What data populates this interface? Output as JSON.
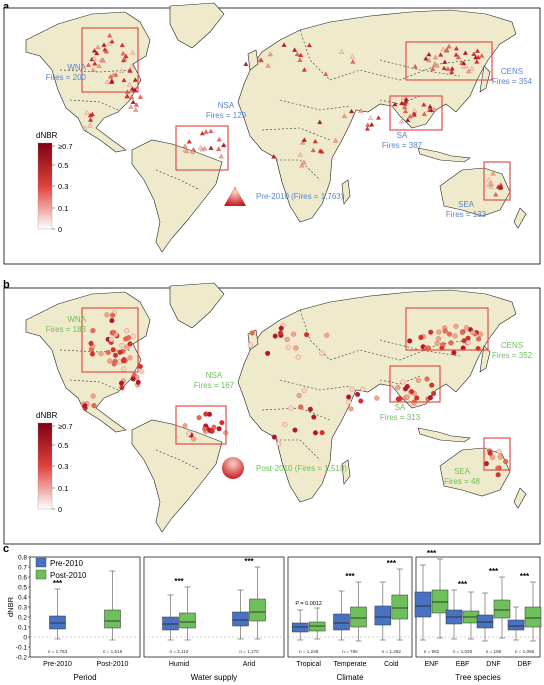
{
  "panels": [
    {
      "letter": "a",
      "period_label": "Pre-2010 (Fires = 1,763)",
      "marker_shape": "triangle",
      "text_color": "#5a86c8",
      "colorbar": {
        "title": "dNBR",
        "ticks": [
          "≥0.7",
          "0.5",
          "0.3",
          "0.1",
          "0"
        ]
      },
      "regions": [
        {
          "name": "WNA",
          "fires": "Fires = 200"
        },
        {
          "name": "NSA",
          "fires": "Fires = 129"
        },
        {
          "name": "CENS",
          "fires": "Fires = 354"
        },
        {
          "name": "SA",
          "fires": "Fires = 387"
        },
        {
          "name": "SEA",
          "fires": "Fires = 133"
        }
      ]
    },
    {
      "letter": "b",
      "period_label": "Post-2010 (Fires = 1,518)",
      "marker_shape": "circle",
      "text_color": "#6cc05a",
      "colorbar": {
        "title": "dNBR",
        "ticks": [
          "≥0.7",
          "0.5",
          "0.3",
          "0.1",
          "0"
        ]
      },
      "regions": [
        {
          "name": "WNA",
          "fires": "Fires = 183"
        },
        {
          "name": "NSA",
          "fires": "Fires = 167"
        },
        {
          "name": "CENS",
          "fires": "Fires = 352"
        },
        {
          "name": "SA",
          "fires": "Fires = 313"
        },
        {
          "name": "SEA",
          "fires": "Fires = 48"
        }
      ]
    }
  ],
  "colors": {
    "land": "#efeacb",
    "box": "#e0413a",
    "pre": "#4a72c2",
    "post": "#6fbf5c",
    "fire_dark": "#b2182b",
    "fire_light": "#fbd4c4"
  },
  "chart_data": {
    "letter": "c",
    "type": "box",
    "ylabel": "dNBR",
    "ylim": [
      -0.2,
      0.8
    ],
    "yticks": [
      "0.8",
      "0.7",
      "0.6",
      "0.5",
      "0.4",
      "0.3",
      "0.2",
      "0.1",
      "0",
      "-0.1",
      "-0.2"
    ],
    "legend": [
      {
        "name": "Pre-2010",
        "color": "#4a72c2"
      },
      {
        "name": "Post-2010",
        "color": "#6fbf5c"
      }
    ],
    "groups": [
      {
        "title": "Period",
        "categories": [
          {
            "label": "Pre-2010",
            "boxes": [
              {
                "series": "Pre-2010",
                "q1": 0.08,
                "med": 0.14,
                "q3": 0.21,
                "lo": -0.02,
                "hi": 0.48
              }
            ],
            "n": "n = 1,763",
            "sig": "***"
          },
          {
            "label": "Post-2010",
            "boxes": [
              {
                "series": "Post-2010",
                "q1": 0.09,
                "med": 0.16,
                "q3": 0.27,
                "lo": -0.03,
                "hi": 0.66
              }
            ],
            "n": "n = 1,518",
            "sig": ""
          }
        ]
      },
      {
        "title": "Water supply",
        "categories": [
          {
            "label": "Humid",
            "boxes": [
              {
                "series": "Pre-2010",
                "q1": 0.07,
                "med": 0.13,
                "q3": 0.2,
                "lo": -0.03,
                "hi": 0.42
              },
              {
                "series": "Post-2010",
                "q1": 0.09,
                "med": 0.15,
                "q3": 0.24,
                "lo": -0.03,
                "hi": 0.5
              }
            ],
            "n": "n = 2,110",
            "sig": "***"
          },
          {
            "label": "Arid",
            "boxes": [
              {
                "series": "Pre-2010",
                "q1": 0.11,
                "med": 0.17,
                "q3": 0.25,
                "lo": -0.02,
                "hi": 0.47
              },
              {
                "series": "Post-2010",
                "q1": 0.16,
                "med": 0.25,
                "q3": 0.38,
                "lo": -0.02,
                "hi": 0.7
              }
            ],
            "n": "n = 1,170",
            "sig": "***"
          }
        ]
      },
      {
        "title": "Climate",
        "categories": [
          {
            "label": "Tropical",
            "boxes": [
              {
                "series": "Pre-2010",
                "q1": 0.05,
                "med": 0.1,
                "q3": 0.14,
                "lo": -0.03,
                "hi": 0.27
              },
              {
                "series": "Post-2010",
                "q1": 0.06,
                "med": 0.11,
                "q3": 0.15,
                "lo": -0.02,
                "hi": 0.29
              }
            ],
            "n": "n = 1,228",
            "sig": "P = 0.0012"
          },
          {
            "label": "Temperate",
            "boxes": [
              {
                "series": "Pre-2010",
                "q1": 0.07,
                "med": 0.14,
                "q3": 0.23,
                "lo": -0.03,
                "hi": 0.46
              },
              {
                "series": "Post-2010",
                "q1": 0.1,
                "med": 0.19,
                "q3": 0.3,
                "lo": -0.04,
                "hi": 0.55
              }
            ],
            "n": "n = 765",
            "sig": "***"
          },
          {
            "label": "Cold",
            "boxes": [
              {
                "series": "Pre-2010",
                "q1": 0.12,
                "med": 0.2,
                "q3": 0.31,
                "lo": -0.03,
                "hi": 0.55
              },
              {
                "series": "Post-2010",
                "q1": 0.18,
                "med": 0.29,
                "q3": 0.42,
                "lo": -0.03,
                "hi": 0.68
              }
            ],
            "n": "n = 1,282",
            "sig": "***"
          }
        ]
      },
      {
        "title": "Tree species",
        "categories": [
          {
            "label": "ENF",
            "boxes": [
              {
                "series": "Pre-2010",
                "q1": 0.2,
                "med": 0.31,
                "q3": 0.45,
                "lo": -0.03,
                "hi": 0.72
              },
              {
                "series": "Post-2010",
                "q1": 0.24,
                "med": 0.35,
                "q3": 0.47,
                "lo": -0.01,
                "hi": 0.78
              }
            ],
            "n": "n = 982",
            "sig": "***"
          },
          {
            "label": "EBF",
            "boxes": [
              {
                "series": "Pre-2010",
                "q1": 0.13,
                "med": 0.2,
                "q3": 0.27,
                "lo": -0.02,
                "hi": 0.47
              },
              {
                "series": "Post-2010",
                "q1": 0.14,
                "med": 0.2,
                "q3": 0.26,
                "lo": -0.02,
                "hi": 0.45
              }
            ],
            "n": "n = 1,030",
            "sig": "***"
          },
          {
            "label": "DNF",
            "boxes": [
              {
                "series": "Pre-2010",
                "q1": 0.09,
                "med": 0.15,
                "q3": 0.22,
                "lo": -0.04,
                "hi": 0.44
              },
              {
                "series": "Post-2010",
                "q1": 0.19,
                "med": 0.27,
                "q3": 0.37,
                "lo": -0.01,
                "hi": 0.6
              }
            ],
            "n": "n = 166",
            "sig": "***"
          },
          {
            "label": "DBF",
            "boxes": [
              {
                "series": "Pre-2010",
                "q1": 0.07,
                "med": 0.11,
                "q3": 0.17,
                "lo": -0.03,
                "hi": 0.3
              },
              {
                "series": "Post-2010",
                "q1": 0.1,
                "med": 0.19,
                "q3": 0.3,
                "lo": -0.04,
                "hi": 0.55
              }
            ],
            "n": "n = 1,095",
            "sig": "***"
          }
        ]
      }
    ]
  }
}
